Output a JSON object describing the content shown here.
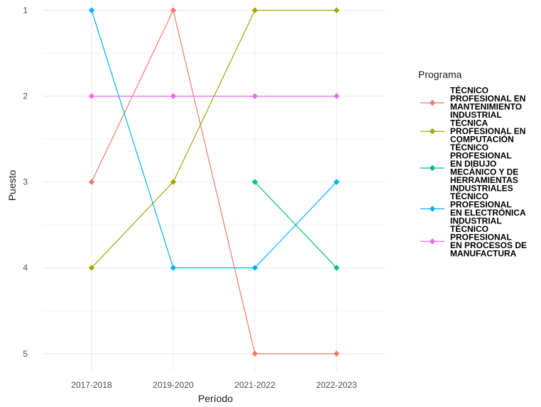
{
  "chart_data": {
    "type": "line",
    "xlabel": "Período",
    "ylabel": "Puesto",
    "categories": [
      "2017-2018",
      "2019-2020",
      "2021-2022",
      "2022-2023"
    ],
    "y_ticks": [
      1,
      2,
      3,
      4,
      5
    ],
    "ylim": [
      5.2,
      0.88
    ],
    "y_reversed": true,
    "grid": true,
    "legend": {
      "title": "Programa",
      "placement": "right"
    },
    "series": [
      {
        "name": "TÉCNICO PROFESIONAL EN MANTENIMIENTO INDUSTRIAL",
        "label_lines": [
          "TÉCNICO",
          "PROFESIONAL EN",
          "MANTENIMIENTO",
          "INDUSTRIAL"
        ],
        "color": "#F8766D",
        "values": [
          3,
          1,
          5,
          5
        ]
      },
      {
        "name": "TÉCNICA PROFESIONAL EN COMPUTACIÓN",
        "label_lines": [
          "TÉCNICA",
          "PROFESIONAL EN",
          "COMPUTACIÓN"
        ],
        "color": "#A3A500",
        "values": [
          4,
          3,
          1,
          1
        ]
      },
      {
        "name": "TÉCNICO PROFESIONAL EN DIBUJO MECÁNICO Y DE HERRAMIENTAS INDUSTRIALES",
        "label_lines": [
          "TÉCNICO",
          "PROFESIONAL",
          "EN DIBUJO",
          "MECÁNICO Y DE",
          "HERRAMIENTAS",
          "INDUSTRIALES"
        ],
        "color": "#00BF7D",
        "values": [
          null,
          null,
          3,
          4
        ]
      },
      {
        "name": "TÉCNICO PROFESIONAL EN ELECTRÓNICA INDUSTRIAL",
        "label_lines": [
          "TÉCNICO",
          "PROFESIONAL",
          "EN ELECTRÓNICA",
          "INDUSTRIAL"
        ],
        "color": "#00B0F6",
        "values": [
          1,
          4,
          4,
          3
        ]
      },
      {
        "name": "TÉCNICO PROFESIONAL EN PROCESOS DE MANUFACTURA",
        "label_lines": [
          "TÉCNICO",
          "PROFESIONAL",
          "EN PROCESOS DE",
          "MANUFACTURA"
        ],
        "color": "#E76BF3",
        "values": [
          2,
          2,
          2,
          2
        ]
      }
    ]
  }
}
